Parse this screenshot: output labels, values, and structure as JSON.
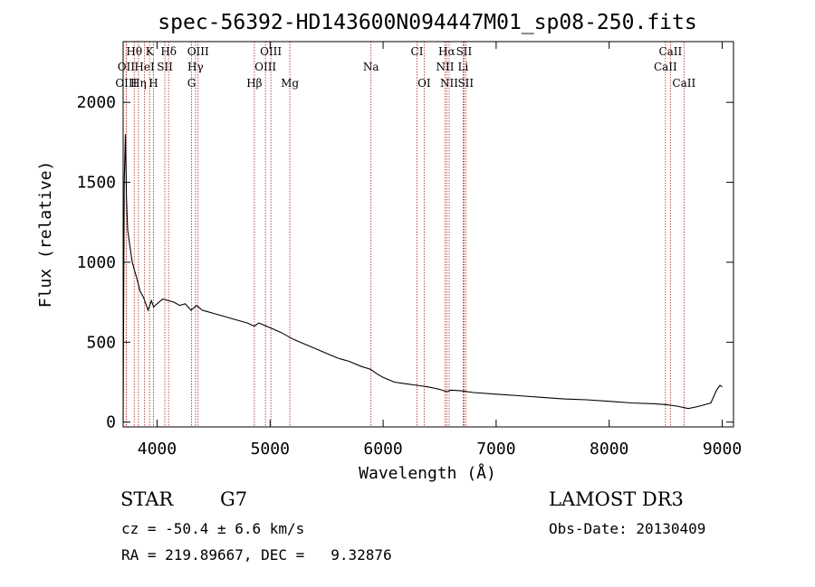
{
  "chart_data": {
    "type": "line",
    "title": "spec-56392-HD143600N094447M01_sp08-250.fits",
    "xlabel": "Wavelength (Å)",
    "ylabel": "Flux (relative)",
    "xlim": [
      3700,
      9100
    ],
    "ylim": [
      -30,
      2380
    ],
    "xticks": [
      4000,
      5000,
      6000,
      7000,
      8000,
      9000
    ],
    "yticks": [
      0,
      500,
      1000,
      1500,
      2000
    ],
    "xtick_labels": [
      "4000",
      "5000",
      "6000",
      "7000",
      "8000",
      "9000"
    ],
    "ytick_labels": [
      "0",
      "500",
      "1000",
      "1500",
      "2000"
    ],
    "series": [
      {
        "name": "spectrum",
        "x": [
          3700,
          3710,
          3720,
          3730,
          3740,
          3760,
          3780,
          3800,
          3820,
          3850,
          3880,
          3900,
          3920,
          3950,
          3970,
          4000,
          4050,
          4100,
          4150,
          4200,
          4250,
          4300,
          4350,
          4400,
          4450,
          4500,
          4600,
          4700,
          4800,
          4860,
          4900,
          5000,
          5100,
          5200,
          5300,
          5400,
          5500,
          5600,
          5700,
          5800,
          5890,
          5950,
          6000,
          6100,
          6200,
          6300,
          6400,
          6500,
          6563,
          6600,
          6700,
          6800,
          7000,
          7200,
          7400,
          7600,
          7800,
          8000,
          8200,
          8400,
          8500,
          8600,
          8700,
          8800,
          8900,
          8950,
          8980,
          9000
        ],
        "values": [
          0,
          1500,
          1800,
          1400,
          1200,
          1100,
          1000,
          950,
          900,
          820,
          780,
          740,
          700,
          760,
          720,
          740,
          770,
          760,
          750,
          730,
          740,
          700,
          730,
          700,
          690,
          680,
          660,
          640,
          620,
          600,
          620,
          590,
          560,
          520,
          490,
          460,
          430,
          400,
          380,
          350,
          330,
          300,
          280,
          250,
          240,
          230,
          220,
          205,
          190,
          200,
          195,
          185,
          175,
          165,
          155,
          145,
          140,
          130,
          120,
          115,
          110,
          100,
          85,
          100,
          120,
          200,
          230,
          220
        ]
      }
    ],
    "spectral_lines": [
      {
        "label": "Hθ",
        "wave": 3798,
        "row": 1
      },
      {
        "label": "OII",
        "wave": 3727,
        "row": 2
      },
      {
        "label": "OIII",
        "wave": 3727,
        "row": 3
      },
      {
        "label": "K",
        "wave": 3934,
        "row": 1
      },
      {
        "label": "HeI",
        "wave": 3889,
        "row": 2
      },
      {
        "label": "Hη",
        "wave": 3835,
        "row": 3
      },
      {
        "label": "SII",
        "wave": 4069,
        "row": 2
      },
      {
        "label": "H",
        "wave": 3968,
        "row": 3
      },
      {
        "label": "Hδ",
        "wave": 4102,
        "row": 1
      },
      {
        "label": "OIII",
        "wave": 4363,
        "row": 1
      },
      {
        "label": "Hγ",
        "wave": 4340,
        "row": 2
      },
      {
        "label": "G",
        "wave": 4305,
        "row": 3
      },
      {
        "label": "Hβ",
        "wave": 4861,
        "row": 3
      },
      {
        "label": "OIII",
        "wave": 5007,
        "row": 1
      },
      {
        "label": "OIII",
        "wave": 4959,
        "row": 2
      },
      {
        "label": "Mg",
        "wave": 5175,
        "row": 3
      },
      {
        "label": "Na",
        "wave": 5893,
        "row": 2
      },
      {
        "label": "CI",
        "wave": 6300,
        "row": 1
      },
      {
        "label": "OI",
        "wave": 6363,
        "row": 3
      },
      {
        "label": "Hα",
        "wave": 6563,
        "row": 1
      },
      {
        "label": "SII",
        "wave": 6716,
        "row": 1
      },
      {
        "label": "NII",
        "wave": 6548,
        "row": 2
      },
      {
        "label": "Li",
        "wave": 6708,
        "row": 2
      },
      {
        "label": "NII",
        "wave": 6584,
        "row": 3
      },
      {
        "label": "SII",
        "wave": 6731,
        "row": 3
      },
      {
        "label": "CaII",
        "wave": 8542,
        "row": 1
      },
      {
        "label": "CaII",
        "wave": 8498,
        "row": 2
      },
      {
        "label": "CaII",
        "wave": 8662,
        "row": 3
      }
    ]
  },
  "info": {
    "object_type": "STAR",
    "subclass": "G7",
    "survey": "LAMOST DR3",
    "redshift_line": "cz = -50.4 ± 6.6 km/s",
    "obs_date_line": "Obs-Date: 20130409",
    "coords_line": "RA = 219.89667, DEC =   9.32876"
  },
  "colors": {
    "line_marker": "#b22222",
    "spectrum": "#000000",
    "axes": "#000000"
  }
}
